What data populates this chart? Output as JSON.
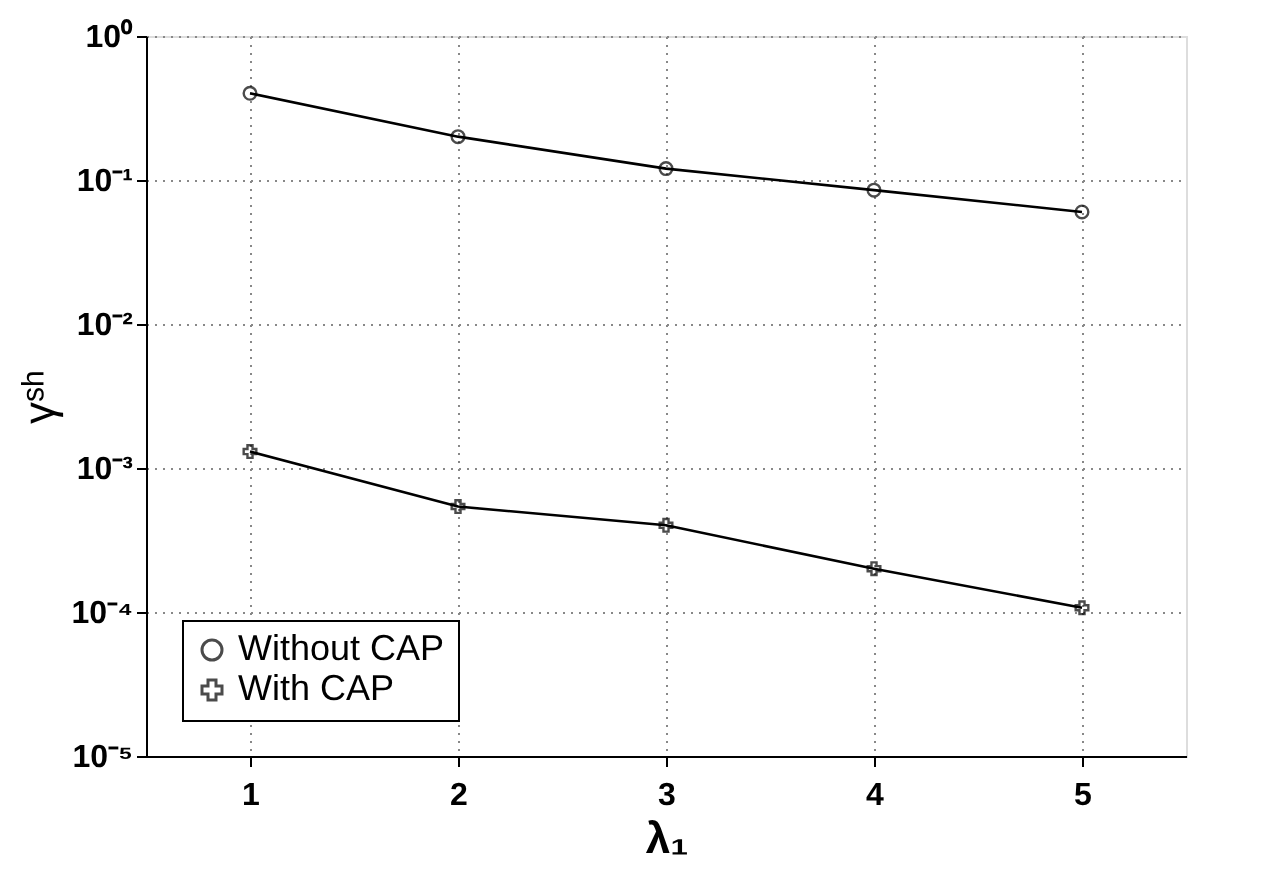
{
  "chart_data": {
    "type": "line",
    "xlabel": "λ₁",
    "ylabel": "γˢʰ",
    "x": [
      1,
      2,
      3,
      4,
      5
    ],
    "series": [
      {
        "name": "Without CAP",
        "color": "#000000",
        "marker": "circle",
        "values": [
          0.4,
          0.2,
          0.12,
          0.085,
          0.06
        ]
      },
      {
        "name": "With CAP",
        "color": "#000000",
        "marker": "cross",
        "values": [
          0.0013,
          0.00054,
          0.0004,
          0.0002,
          0.000107
        ]
      }
    ],
    "log": "y",
    "xlim": [
      0.5,
      5.5
    ],
    "xticks": [
      1,
      2,
      3,
      4,
      5
    ],
    "ylim": [
      1e-05,
      1
    ],
    "yticks": [
      {
        "value": 1e-05,
        "label": "10⁻⁵"
      },
      {
        "value": 0.0001,
        "label": "10⁻⁴"
      },
      {
        "value": 0.001,
        "label": "10⁻³"
      },
      {
        "value": 0.01,
        "label": "10⁻²"
      },
      {
        "value": 0.1,
        "label": "10⁻¹"
      },
      {
        "value": 1,
        "label": "10⁰"
      }
    ],
    "grid": true,
    "legend": "bottom left",
    "line_style": "solid"
  }
}
